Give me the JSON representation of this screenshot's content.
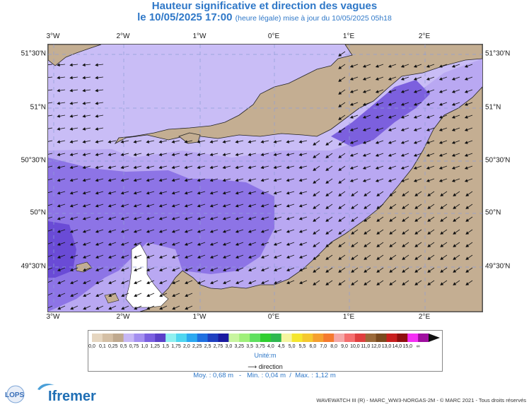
{
  "title": {
    "line1": "Hauteur significative et direction des vagues",
    "line2_main": "le 10/05/2025 17:00",
    "line2_note": "(heure légale) mise à jour du 10/05/2025 05h18"
  },
  "axes": {
    "top_lon": [
      "3°W",
      "2°W",
      "1°W",
      "0°E",
      "1°E",
      "2°E"
    ],
    "bottom_lon": [
      "3°W",
      "2°W",
      "1°W",
      "0°E",
      "1°E",
      "2°E"
    ],
    "left_lat": [
      "51°30'N",
      "51°N",
      "50°30'N",
      "50°N",
      "49°30'N"
    ],
    "right_lat": [
      "51°30'N",
      "51°N",
      "50°30'N",
      "50°N",
      "49°30'N"
    ]
  },
  "legend": {
    "labels": [
      "0,0",
      "0,1",
      "0,25",
      "0,5",
      "0,75",
      "1,0",
      "1,25",
      "1,5",
      "1,75",
      "2,0",
      "2,25",
      "2,5",
      "2,75",
      "3,0",
      "3,25",
      "3,5",
      "3,75",
      "4,0",
      "4,5",
      "5,0",
      "5,5",
      "6,0",
      "7,0",
      "8,0",
      "9,0",
      "10,0",
      "11,0",
      "12,0",
      "13,0",
      "14,0",
      "15,0",
      "∞"
    ],
    "colors": [
      "#e6d6c0",
      "#d4bfa5",
      "#bfa98f",
      "#c7b8f5",
      "#a48ff0",
      "#7a5fe0",
      "#5a3fc8",
      "#8ff0f0",
      "#4fd6f0",
      "#2ba8f0",
      "#1f6fe0",
      "#1f3fc0",
      "#1a1aa0",
      "#c8f59f",
      "#9ff07a",
      "#5fe05f",
      "#2fcf2f",
      "#2fb84f",
      "#f5f59f",
      "#f5e62f",
      "#f5c82f",
      "#f5a02f",
      "#f57a2f",
      "#f5a8a8",
      "#f56f6f",
      "#e03f3f",
      "#9b6a3a",
      "#7a4a1f",
      "#c81f1f",
      "#8f0f0f",
      "#f52ff5",
      "#9f0f9f"
    ],
    "unit": "Unité:m",
    "direction": "direction"
  },
  "stats": {
    "moy": "Moy. : 0,68 m",
    "min": "Min. : 0,04 m",
    "max": "Max. : 1,12 m"
  },
  "logos": {
    "lops": "LOPS",
    "ifremer": "Ifremer"
  },
  "footer": "WAVEWATCH III (R) - MARC_WW3-NORGAS-2M - © MARC 2021 - Tous droits réservés"
}
